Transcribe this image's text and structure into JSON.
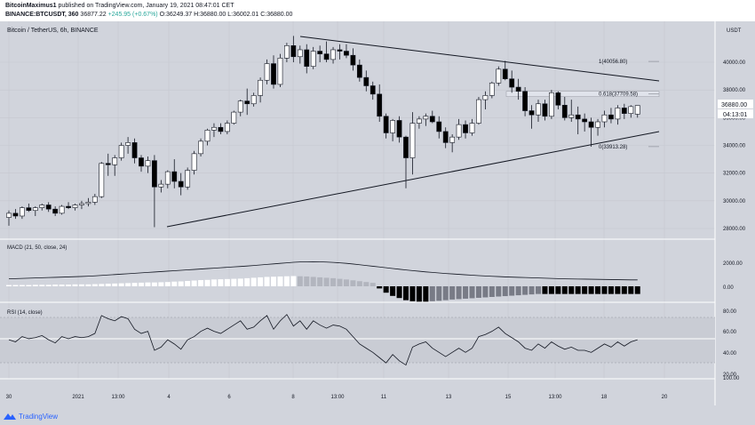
{
  "header": {
    "publisher": "BitcoinMaximus1",
    "publish_text": "published on TradingView.com, January 19, 2021 08:47:01 CET",
    "symbol": "BINANCE:BTCUSDT, 360",
    "price": "36877.22",
    "change": "+245.95 (+0.67%)",
    "ohlc": "O:36249.37 H:36880.00 L:36002.01 C:36880.00"
  },
  "main_pane": {
    "title": "Bitcoin / TetherUS, 6h, BINANCE",
    "currency": "USDT",
    "y_ticks": [
      "40000.00",
      "38000.00",
      "36000.00",
      "34000.00",
      "32000.00",
      "30000.00",
      "28000.00"
    ],
    "price_label": "36880.00",
    "countdown": "04:13:01",
    "fib_labels": [
      "1(40056.80)",
      "0.618(37709.58)",
      "0(33913.28)"
    ]
  },
  "macd_pane": {
    "title": "MACD (21, 50, close, 24)",
    "y_ticks": [
      "2000.00",
      "0.00"
    ]
  },
  "rsi_pane": {
    "title": "RSI (14, close)",
    "y_ticks": [
      "80.00",
      "60.00",
      "40.00",
      "20.00",
      "100.00"
    ]
  },
  "time_axis": {
    "labels": [
      "30",
      "2021",
      "13:00",
      "4",
      "6",
      "8",
      "13:00",
      "11",
      "13",
      "15",
      "13:00",
      "18",
      "20"
    ]
  },
  "footer": {
    "brand": "TradingView"
  },
  "colors": {
    "bg": "#d1d4dc",
    "up": "#ffffff",
    "down": "#000000",
    "line": "#131722"
  },
  "candles": [
    [
      28800,
      29300,
      28200,
      29100
    ],
    [
      29100,
      29400,
      28700,
      28900
    ],
    [
      28900,
      29600,
      28700,
      29500
    ],
    [
      29500,
      29800,
      29200,
      29300
    ],
    [
      29300,
      29600,
      28900,
      29500
    ],
    [
      29500,
      29800,
      29300,
      29700
    ],
    [
      29700,
      29900,
      29200,
      29400
    ],
    [
      29400,
      29600,
      28900,
      29100
    ],
    [
      29100,
      29700,
      29000,
      29600
    ],
    [
      29600,
      29900,
      29400,
      29500
    ],
    [
      29500,
      29800,
      29300,
      29700
    ],
    [
      29700,
      30000,
      29400,
      29800
    ],
    [
      29800,
      30200,
      29600,
      29900
    ],
    [
      29900,
      30500,
      29700,
      30300
    ],
    [
      30300,
      32800,
      30200,
      32700
    ],
    [
      32700,
      33400,
      31800,
      32600
    ],
    [
      32600,
      33300,
      31800,
      33100
    ],
    [
      33100,
      34200,
      32900,
      34000
    ],
    [
      34000,
      34600,
      33400,
      34200
    ],
    [
      34200,
      34500,
      32700,
      33100
    ],
    [
      33100,
      33300,
      32100,
      32500
    ],
    [
      32500,
      33200,
      32000,
      32900
    ],
    [
      32900,
      33300,
      28100,
      31000
    ],
    [
      31000,
      31500,
      30600,
      31200
    ],
    [
      31200,
      32200,
      30900,
      32100
    ],
    [
      32100,
      33000,
      30900,
      31400
    ],
    [
      31400,
      32000,
      30400,
      31000
    ],
    [
      31000,
      32400,
      30800,
      32200
    ],
    [
      32200,
      33600,
      31900,
      33400
    ],
    [
      33400,
      34500,
      33200,
      34300
    ],
    [
      34300,
      35200,
      34000,
      35100
    ],
    [
      35100,
      35600,
      34600,
      35300
    ],
    [
      35300,
      35600,
      34800,
      35000
    ],
    [
      35000,
      35800,
      34800,
      35600
    ],
    [
      35600,
      36500,
      35500,
      36400
    ],
    [
      36400,
      37300,
      36100,
      37200
    ],
    [
      37200,
      38100,
      36200,
      37000
    ],
    [
      37000,
      37800,
      36800,
      37600
    ],
    [
      37600,
      38900,
      37100,
      38700
    ],
    [
      38700,
      40200,
      38400,
      39900
    ],
    [
      39900,
      40500,
      38100,
      38400
    ],
    [
      38400,
      40600,
      38200,
      40300
    ],
    [
      40300,
      41400,
      40000,
      41200
    ],
    [
      41200,
      41900,
      40000,
      40400
    ],
    [
      40400,
      41200,
      39900,
      40900
    ],
    [
      40900,
      41300,
      39200,
      39700
    ],
    [
      39700,
      41100,
      39500,
      40800
    ],
    [
      40800,
      41200,
      40000,
      40600
    ],
    [
      40600,
      41500,
      40000,
      40200
    ],
    [
      40200,
      41100,
      39900,
      40900
    ],
    [
      40900,
      41300,
      40200,
      40800
    ],
    [
      40800,
      41300,
      40300,
      40500
    ],
    [
      40500,
      41000,
      39400,
      39800
    ],
    [
      39800,
      40200,
      38600,
      38900
    ],
    [
      38900,
      39400,
      37900,
      38300
    ],
    [
      38300,
      38600,
      37300,
      37700
    ],
    [
      37700,
      38400,
      35700,
      36100
    ],
    [
      36100,
      36300,
      34500,
      34900
    ],
    [
      34900,
      35900,
      34300,
      35800
    ],
    [
      35800,
      36100,
      34200,
      34600
    ],
    [
      34600,
      34700,
      30900,
      33100
    ],
    [
      33100,
      36400,
      31900,
      35600
    ],
    [
      35600,
      36100,
      35200,
      35900
    ],
    [
      35900,
      36300,
      35400,
      36100
    ],
    [
      36100,
      36500,
      35600,
      35700
    ],
    [
      35700,
      36100,
      34500,
      35000
    ],
    [
      35000,
      35300,
      33800,
      34200
    ],
    [
      34200,
      34800,
      33500,
      34600
    ],
    [
      34600,
      35900,
      34400,
      35500
    ],
    [
      35500,
      35800,
      34500,
      34900
    ],
    [
      34900,
      35900,
      34700,
      35600
    ],
    [
      35600,
      37500,
      35500,
      37300
    ],
    [
      37300,
      37900,
      36600,
      37600
    ],
    [
      37600,
      38600,
      37400,
      38500
    ],
    [
      38500,
      39700,
      38300,
      39500
    ],
    [
      39500,
      40100,
      38700,
      38800
    ],
    [
      38800,
      39400,
      37800,
      38200
    ],
    [
      38200,
      38800,
      37300,
      37900
    ],
    [
      37900,
      38200,
      36100,
      36500
    ],
    [
      36500,
      36900,
      35200,
      36200
    ],
    [
      36200,
      37300,
      35700,
      37000
    ],
    [
      37000,
      37300,
      35800,
      36100
    ],
    [
      36100,
      38000,
      35900,
      37800
    ],
    [
      37800,
      37900,
      36600,
      36900
    ],
    [
      36900,
      37500,
      35800,
      36000
    ],
    [
      36000,
      37300,
      35700,
      36200
    ],
    [
      36200,
      36800,
      34800,
      35900
    ],
    [
      35900,
      36300,
      35000,
      35700
    ],
    [
      35700,
      36000,
      33900,
      35300
    ],
    [
      35300,
      35900,
      34700,
      35700
    ],
    [
      35700,
      36500,
      35300,
      36200
    ],
    [
      36200,
      36700,
      35600,
      35900
    ],
    [
      35900,
      36900,
      35500,
      36700
    ],
    [
      36700,
      37000,
      35900,
      36300
    ],
    [
      36300,
      36900,
      36000,
      36800
    ],
    [
      36249,
      36880,
      36002,
      36880
    ]
  ],
  "macd_hist": [
    60,
    60,
    60,
    60,
    70,
    70,
    70,
    80,
    80,
    80,
    90,
    90,
    90,
    100,
    110,
    120,
    130,
    140,
    150,
    160,
    170,
    180,
    180,
    190,
    200,
    220,
    230,
    250,
    270,
    290,
    300,
    320,
    330,
    340,
    350,
    360,
    380,
    400,
    420,
    440,
    450,
    460,
    470,
    480,
    470,
    460,
    440,
    420,
    400,
    380,
    350,
    320,
    280,
    240,
    200,
    160,
    -100,
    -300,
    -450,
    -550,
    -650,
    -700,
    -720,
    -720,
    -700,
    -680,
    -650,
    -620,
    -600,
    -580,
    -560,
    -540,
    -520,
    -500,
    -480,
    -460,
    -440,
    -420,
    -400,
    -380,
    -360,
    -360,
    -360,
    -360,
    -360,
    -360,
    -360,
    -360,
    -360,
    -360,
    -360,
    -360,
    -360,
    -360,
    -360,
    -360
  ],
  "macd_line": [
    700,
    720,
    740,
    760,
    780,
    800,
    820,
    840,
    860,
    880,
    900,
    920,
    950,
    980,
    1020,
    1060,
    1100,
    1140,
    1180,
    1220,
    1260,
    1300,
    1340,
    1380,
    1420,
    1460,
    1500,
    1540,
    1580,
    1620,
    1660,
    1700,
    1740,
    1780,
    1820,
    1860,
    1900,
    1950,
    2000,
    2050,
    2100,
    2150,
    2200,
    2250,
    2280,
    2290,
    2300,
    2290,
    2270,
    2240,
    2200,
    2150,
    2090,
    2020,
    1950,
    1880,
    1810,
    1740,
    1670,
    1600,
    1530,
    1470,
    1410,
    1350,
    1300,
    1250,
    1200,
    1160,
    1120,
    1080,
    1040,
    1000,
    970,
    940,
    910,
    880,
    860,
    840,
    820,
    800,
    780,
    760,
    740,
    720,
    700,
    690,
    680,
    670,
    660,
    650,
    640,
    630,
    620,
    610,
    600,
    600
  ],
  "rsi": [
    52,
    50,
    55,
    53,
    54,
    56,
    52,
    49,
    55,
    53,
    55,
    54,
    55,
    58,
    75,
    72,
    70,
    74,
    72,
    62,
    58,
    60,
    42,
    45,
    52,
    48,
    43,
    52,
    55,
    60,
    63,
    60,
    58,
    62,
    66,
    70,
    62,
    64,
    70,
    75,
    62,
    70,
    76,
    65,
    70,
    62,
    70,
    66,
    63,
    66,
    65,
    62,
    55,
    48,
    44,
    40,
    35,
    30,
    38,
    32,
    28,
    45,
    48,
    50,
    44,
    40,
    36,
    40,
    44,
    40,
    44,
    55,
    57,
    60,
    64,
    58,
    54,
    50,
    44,
    42,
    48,
    44,
    50,
    46,
    43,
    45,
    42,
    42,
    40,
    44,
    48,
    45,
    50,
    46,
    50,
    52
  ]
}
